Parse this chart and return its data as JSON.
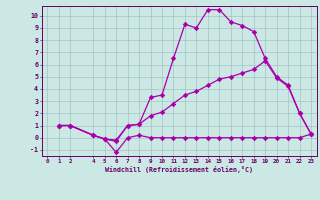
{
  "xlabel": "Windchill (Refroidissement éolien,°C)",
  "bg_color": "#cce8e4",
  "line_color": "#aa00aa",
  "grid_color": "#99bbbb",
  "axis_color": "#660066",
  "text_color": "#660066",
  "xlim": [
    -0.5,
    23.5
  ],
  "ylim": [
    -1.5,
    10.8
  ],
  "xticks": [
    0,
    1,
    2,
    4,
    5,
    6,
    7,
    8,
    9,
    10,
    11,
    12,
    13,
    14,
    15,
    16,
    17,
    18,
    19,
    20,
    21,
    22,
    23
  ],
  "yticks": [
    -1,
    0,
    1,
    2,
    3,
    4,
    5,
    6,
    7,
    8,
    9,
    10
  ],
  "line1_x": [
    1,
    2,
    4,
    5,
    6,
    7,
    8,
    9,
    10,
    11,
    12,
    13,
    14,
    15,
    16,
    17,
    18,
    19,
    20,
    21,
    22,
    23
  ],
  "line1_y": [
    1.0,
    1.0,
    0.2,
    -0.1,
    -0.2,
    1.0,
    1.1,
    3.3,
    3.5,
    6.5,
    9.3,
    9.0,
    10.5,
    10.5,
    9.5,
    9.2,
    8.7,
    6.5,
    5.0,
    4.3,
    2.0,
    0.3
  ],
  "line2_x": [
    1,
    2,
    4,
    5,
    6,
    7,
    8,
    9,
    10,
    11,
    12,
    13,
    14,
    15,
    16,
    17,
    18,
    19,
    20,
    21,
    22,
    23
  ],
  "line2_y": [
    1.0,
    1.0,
    0.2,
    -0.1,
    -0.3,
    1.0,
    1.1,
    1.8,
    2.1,
    2.8,
    3.5,
    3.8,
    4.3,
    4.8,
    5.0,
    5.3,
    5.6,
    6.3,
    4.9,
    4.2,
    2.0,
    0.3
  ],
  "line3_x": [
    1,
    2,
    4,
    5,
    6,
    7,
    8,
    9,
    10,
    11,
    12,
    13,
    14,
    15,
    16,
    17,
    18,
    19,
    20,
    21,
    22,
    23
  ],
  "line3_y": [
    1.0,
    1.0,
    0.2,
    -0.1,
    -1.2,
    0.0,
    0.2,
    0.0,
    0.0,
    0.0,
    0.0,
    0.0,
    0.0,
    0.0,
    0.0,
    0.0,
    0.0,
    0.0,
    0.0,
    0.0,
    0.0,
    0.3
  ]
}
